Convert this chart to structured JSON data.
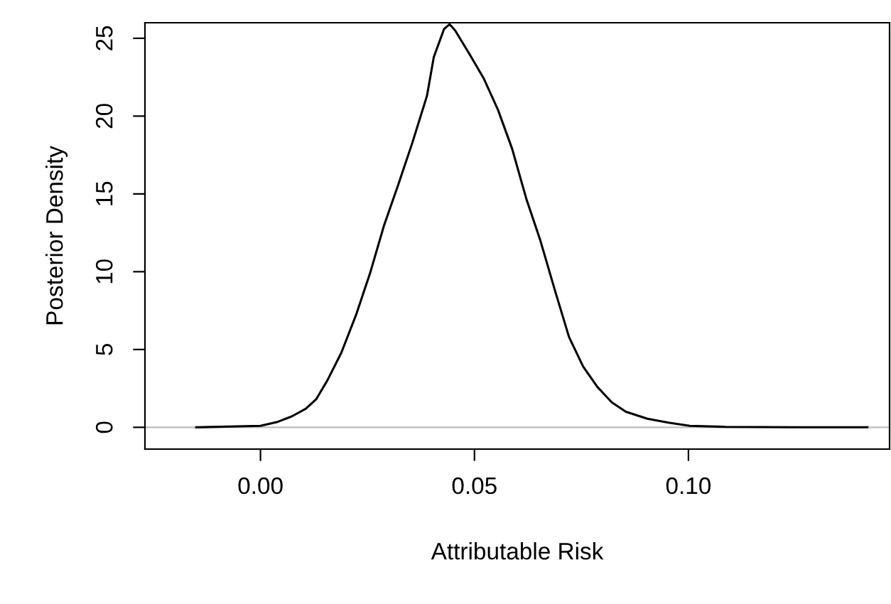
{
  "chart_data": {
    "type": "line",
    "xlabel": "Attributable Risk",
    "ylabel": "Posterior Density",
    "x": [
      -0.015,
      0,
      0.004,
      0.0073,
      0.0106,
      0.013,
      0.0156,
      0.0189,
      0.0223,
      0.0256,
      0.0289,
      0.0322,
      0.0355,
      0.0389,
      0.0405,
      0.0429,
      0.0442,
      0.0455,
      0.0488,
      0.0522,
      0.0555,
      0.0588,
      0.0621,
      0.0654,
      0.0688,
      0.0721,
      0.0754,
      0.0787,
      0.0821,
      0.0854,
      0.0904,
      0.0953,
      0.1003,
      0.1086,
      0.1252,
      0.1418
    ],
    "series": [
      {
        "color": "#000000",
        "values": [
          0,
          0.1,
          0.35,
          0.7,
          1.2,
          1.8,
          3.0,
          4.8,
          7.2,
          9.9,
          13,
          15.6,
          18.3,
          21.3,
          23.8,
          25.6,
          25.9,
          25.5,
          24,
          22.4,
          20.4,
          17.9,
          14.7,
          12.0,
          8.8,
          5.8,
          3.9,
          2.6,
          1.6,
          1.0,
          0.55,
          0.3,
          0.1,
          0.03,
          0,
          0
        ]
      }
    ],
    "xlim": [
      -0.027,
      0.147
    ],
    "ylim": [
      -1.4,
      26.0
    ],
    "xticks": [
      {
        "value": 0,
        "label": "0.00"
      },
      {
        "value": 0.05,
        "label": "0.05"
      },
      {
        "value": 0.1,
        "label": "0.10"
      }
    ],
    "yticks": [
      0,
      5,
      10,
      15,
      20,
      25
    ],
    "ref_lines": [
      {
        "axis": "y",
        "value": 0,
        "color": "#bebebe"
      }
    ],
    "grid": false,
    "legend": false,
    "marker": "none",
    "line_style": "solid"
  }
}
